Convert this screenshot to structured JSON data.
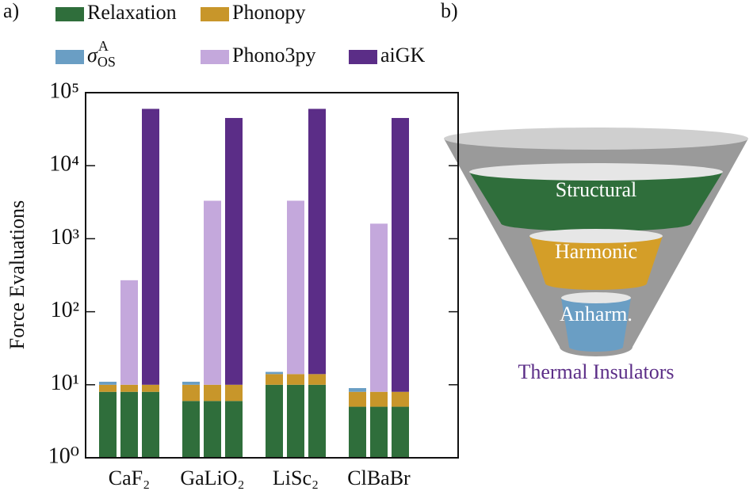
{
  "chart_data": {
    "type": "bar",
    "panel_label": "a)",
    "ylabel": "Force Evaluations",
    "log_y": true,
    "ylim": [
      1,
      100000
    ],
    "yticks": [
      {
        "value": 1,
        "label": "10⁰"
      },
      {
        "value": 10,
        "label": "10¹"
      },
      {
        "value": 100,
        "label": "10²"
      },
      {
        "value": 1000,
        "label": "10³"
      },
      {
        "value": 10000,
        "label": "10⁴"
      },
      {
        "value": 100000,
        "label": "10⁵"
      }
    ],
    "categories": [
      "CaF₂",
      "GaLiO₂",
      "LiSc₂",
      "ClBaBr"
    ],
    "series": [
      {
        "name": "Relaxation",
        "color": "#2f6e3b",
        "bars": [
          0,
          1,
          2
        ],
        "values": [
          8,
          6,
          10,
          5
        ]
      },
      {
        "name": "Phonopy",
        "color": "#c8962a",
        "bars": [
          0,
          1,
          2
        ],
        "values": [
          2,
          4,
          4,
          3
        ]
      },
      {
        "name": "σ",
        "name_sub": "OS",
        "name_sup": "A",
        "color": "#6a9ec4",
        "bars": [
          0
        ],
        "values": [
          1,
          1,
          1,
          1
        ]
      },
      {
        "name": "Phono3py",
        "color": "#c4a8dc",
        "bars": [
          1
        ],
        "values": [
          260,
          3300,
          3300,
          1600
        ]
      },
      {
        "name": "aiGK",
        "color": "#5b2d87",
        "bars": [
          2
        ],
        "values": [
          60000,
          45000,
          60000,
          45000
        ]
      }
    ]
  },
  "diagram": {
    "panel_label": "b)",
    "levels": [
      "Structural",
      "Harmonic",
      "Anharm."
    ],
    "caption": "Thermal Insulators"
  }
}
